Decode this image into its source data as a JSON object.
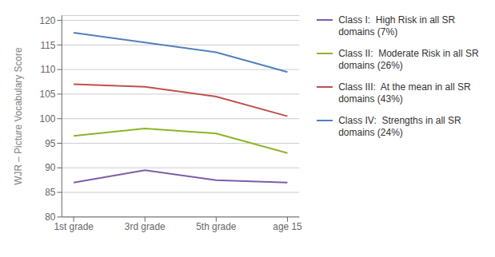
{
  "chart_data": {
    "type": "line",
    "categories": [
      "1st grade",
      "3rd grade",
      "5th grade",
      "age 15"
    ],
    "series": [
      {
        "name": "Class I:  High Risk in all SR\ndomains (7%)",
        "color": "#7B5EA7",
        "values": [
          87,
          89.5,
          87.5,
          87
        ]
      },
      {
        "name": "Class II:  Moderate Risk in all SR\ndomains (26%)",
        "color": "#8DB32A",
        "values": [
          96.5,
          98,
          97,
          93
        ]
      },
      {
        "name": "Class III:  At the mean in all SR\ndomains (43%)",
        "color": "#C0504D",
        "values": [
          107,
          106.5,
          104.5,
          100.5
        ]
      },
      {
        "name": "Class IV:  Strengths in all SR\ndomains (24%)",
        "color": "#4F81BD",
        "values": [
          117.5,
          115.5,
          113.5,
          109.5
        ]
      }
    ],
    "ylabel": "WJR – Picture Vocabulary Score",
    "ylim": [
      80,
      121
    ],
    "yticks": [
      80,
      85,
      90,
      95,
      100,
      105,
      110,
      115,
      120
    ],
    "grid": true,
    "legend": "right"
  }
}
